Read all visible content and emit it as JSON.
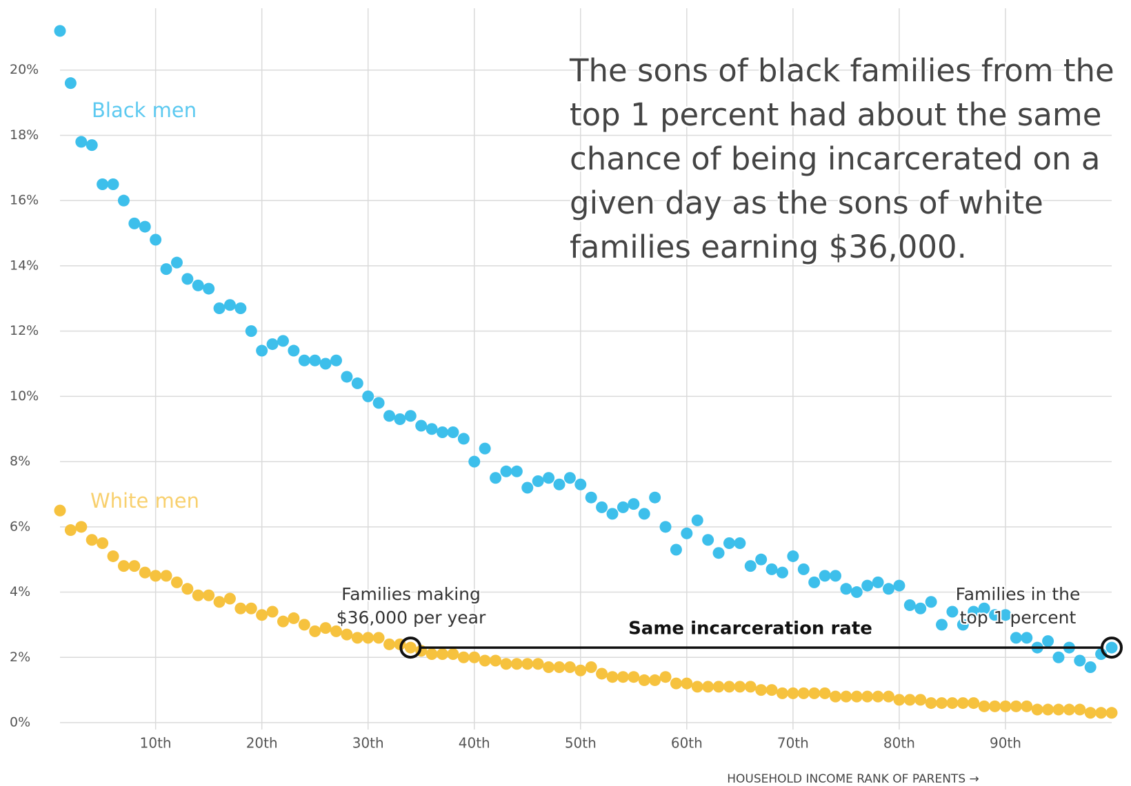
{
  "chart_data": {
    "type": "scatter",
    "x_label": "HOUSEHOLD INCOME RANK OF PARENTS →",
    "x": [
      1,
      2,
      3,
      4,
      5,
      6,
      7,
      8,
      9,
      10,
      11,
      12,
      13,
      14,
      15,
      16,
      17,
      18,
      19,
      20,
      21,
      22,
      23,
      24,
      25,
      26,
      27,
      28,
      29,
      30,
      31,
      32,
      33,
      34,
      35,
      36,
      37,
      38,
      39,
      40,
      41,
      42,
      43,
      44,
      45,
      46,
      47,
      48,
      49,
      50,
      51,
      52,
      53,
      54,
      55,
      56,
      57,
      58,
      59,
      60,
      61,
      62,
      63,
      64,
      65,
      66,
      67,
      68,
      69,
      70,
      71,
      72,
      73,
      74,
      75,
      76,
      77,
      78,
      79,
      80,
      81,
      82,
      83,
      84,
      85,
      86,
      87,
      88,
      89,
      90,
      91,
      92,
      93,
      94,
      95,
      96,
      97,
      98,
      99,
      100
    ],
    "series": [
      {
        "name": "Black men",
        "color": "#3dbfeb",
        "label_color": "#5cc9f0",
        "values": [
          21.2,
          19.6,
          17.8,
          17.7,
          16.5,
          16.5,
          16.0,
          15.3,
          15.2,
          14.8,
          13.9,
          14.1,
          13.6,
          13.4,
          13.3,
          12.7,
          12.8,
          12.7,
          12.0,
          11.4,
          11.6,
          11.7,
          11.4,
          11.1,
          11.1,
          11.0,
          11.1,
          10.6,
          10.4,
          10.0,
          9.8,
          9.4,
          9.3,
          9.4,
          9.1,
          9.0,
          8.9,
          8.9,
          8.7,
          8.0,
          8.4,
          7.5,
          7.7,
          7.7,
          7.2,
          7.4,
          7.5,
          7.3,
          7.5,
          7.3,
          6.9,
          6.6,
          6.4,
          6.6,
          6.7,
          6.4,
          6.9,
          6.0,
          5.3,
          5.8,
          6.2,
          5.6,
          5.2,
          5.5,
          5.5,
          4.8,
          5.0,
          4.7,
          4.6,
          5.1,
          4.7,
          4.3,
          4.5,
          4.5,
          4.1,
          4.0,
          4.2,
          4.3,
          4.1,
          4.2,
          3.6,
          3.5,
          3.7,
          3.0,
          3.4,
          3.0,
          3.4,
          3.5,
          3.3,
          3.3,
          2.6,
          2.6,
          2.3,
          2.5,
          2.0,
          2.3,
          1.9,
          1.7,
          2.1,
          2.3
        ]
      },
      {
        "name": "White men",
        "color": "#f6c23e",
        "label_color": "#f8d06e",
        "values": [
          6.5,
          5.9,
          6.0,
          5.6,
          5.5,
          5.1,
          4.8,
          4.8,
          4.6,
          4.5,
          4.5,
          4.3,
          4.1,
          3.9,
          3.9,
          3.7,
          3.8,
          3.5,
          3.5,
          3.3,
          3.4,
          3.1,
          3.2,
          3.0,
          2.8,
          2.9,
          2.8,
          2.7,
          2.6,
          2.6,
          2.6,
          2.4,
          2.4,
          2.3,
          2.2,
          2.1,
          2.1,
          2.1,
          2.0,
          2.0,
          1.9,
          1.9,
          1.8,
          1.8,
          1.8,
          1.8,
          1.7,
          1.7,
          1.7,
          1.6,
          1.7,
          1.5,
          1.4,
          1.4,
          1.4,
          1.3,
          1.3,
          1.4,
          1.2,
          1.2,
          1.1,
          1.1,
          1.1,
          1.1,
          1.1,
          1.1,
          1.0,
          1.0,
          0.9,
          0.9,
          0.9,
          0.9,
          0.9,
          0.8,
          0.8,
          0.8,
          0.8,
          0.8,
          0.8,
          0.7,
          0.7,
          0.7,
          0.6,
          0.6,
          0.6,
          0.6,
          0.6,
          0.5,
          0.5,
          0.5,
          0.5,
          0.5,
          0.4,
          0.4,
          0.4,
          0.4,
          0.4,
          0.3,
          0.3,
          0.3
        ]
      }
    ],
    "xlim": [
      1,
      100
    ],
    "ylim": [
      0,
      22
    ],
    "xticks": [
      {
        "value": 10,
        "label": "10th"
      },
      {
        "value": 20,
        "label": "20th"
      },
      {
        "value": 30,
        "label": "30th"
      },
      {
        "value": 40,
        "label": "40th"
      },
      {
        "value": 50,
        "label": "50th"
      },
      {
        "value": 60,
        "label": "60th"
      },
      {
        "value": 70,
        "label": "70th"
      },
      {
        "value": 80,
        "label": "80th"
      },
      {
        "value": 90,
        "label": "90th"
      }
    ],
    "yticks": [
      {
        "value": 0,
        "label": "0%"
      },
      {
        "value": 2,
        "label": "2%"
      },
      {
        "value": 4,
        "label": "4%"
      },
      {
        "value": 6,
        "label": "6%"
      },
      {
        "value": 8,
        "label": "8%"
      },
      {
        "value": 10,
        "label": "10%"
      },
      {
        "value": 12,
        "label": "12%"
      },
      {
        "value": 14,
        "label": "14%"
      },
      {
        "value": 16,
        "label": "16%"
      },
      {
        "value": 18,
        "label": "18%"
      },
      {
        "value": 20,
        "label": "20%"
      }
    ],
    "grid": true,
    "headline": [
      "The sons of black families from the",
      "top 1 percent had about the same",
      "chance of being incarcerated on a",
      "given day as the sons of white",
      "families earning $36,000."
    ],
    "left_note": [
      "Families making",
      "$36,000 per year"
    ],
    "right_note": [
      "Families in the",
      "top 1 percent"
    ],
    "bracket_label": "Same incarceration rate"
  }
}
